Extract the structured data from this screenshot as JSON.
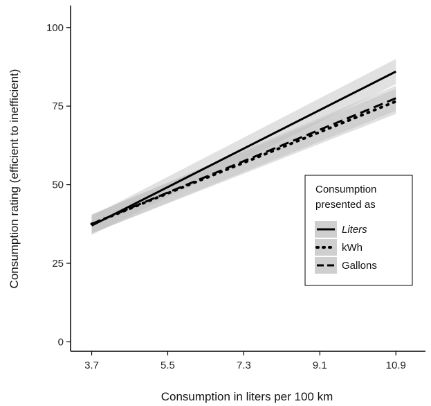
{
  "chart_data": {
    "type": "line",
    "xlabel": "Consumption in liters per 100 km",
    "ylabel": "Consumption rating (efficient to inefficient)",
    "xlim": [
      3.2,
      11.6
    ],
    "ylim": [
      -3,
      107
    ],
    "x_ticks": [
      "3.7",
      "5.5",
      "7.3",
      "9.1",
      "10.9"
    ],
    "y_ticks": [
      "0",
      "25",
      "50",
      "75",
      "100"
    ],
    "legend": {
      "title_line1": "Consumption",
      "title_line2": "presented as",
      "placement": "right"
    },
    "series": [
      {
        "name": "Liters",
        "line_style": "solid",
        "x": [
          3.7,
          10.9
        ],
        "y": [
          37,
          86
        ],
        "ci_low": [
          34,
          82
        ],
        "ci_high": [
          40,
          90
        ]
      },
      {
        "name": "kWh",
        "line_style": "dotted",
        "x": [
          3.7,
          10.9
        ],
        "y": [
          37.5,
          76.5
        ],
        "ci_low": [
          34.5,
          72.5
        ],
        "ci_high": [
          40.5,
          80.5
        ]
      },
      {
        "name": "Gallons",
        "line_style": "dashed",
        "x": [
          3.7,
          10.9
        ],
        "y": [
          37.5,
          77.5
        ],
        "ci_low": [
          34.5,
          73.5
        ],
        "ci_high": [
          40.5,
          81.5
        ]
      }
    ],
    "colors": {
      "line": "#000000",
      "ribbon": "#bdbdbd",
      "axis": "#000000"
    }
  }
}
